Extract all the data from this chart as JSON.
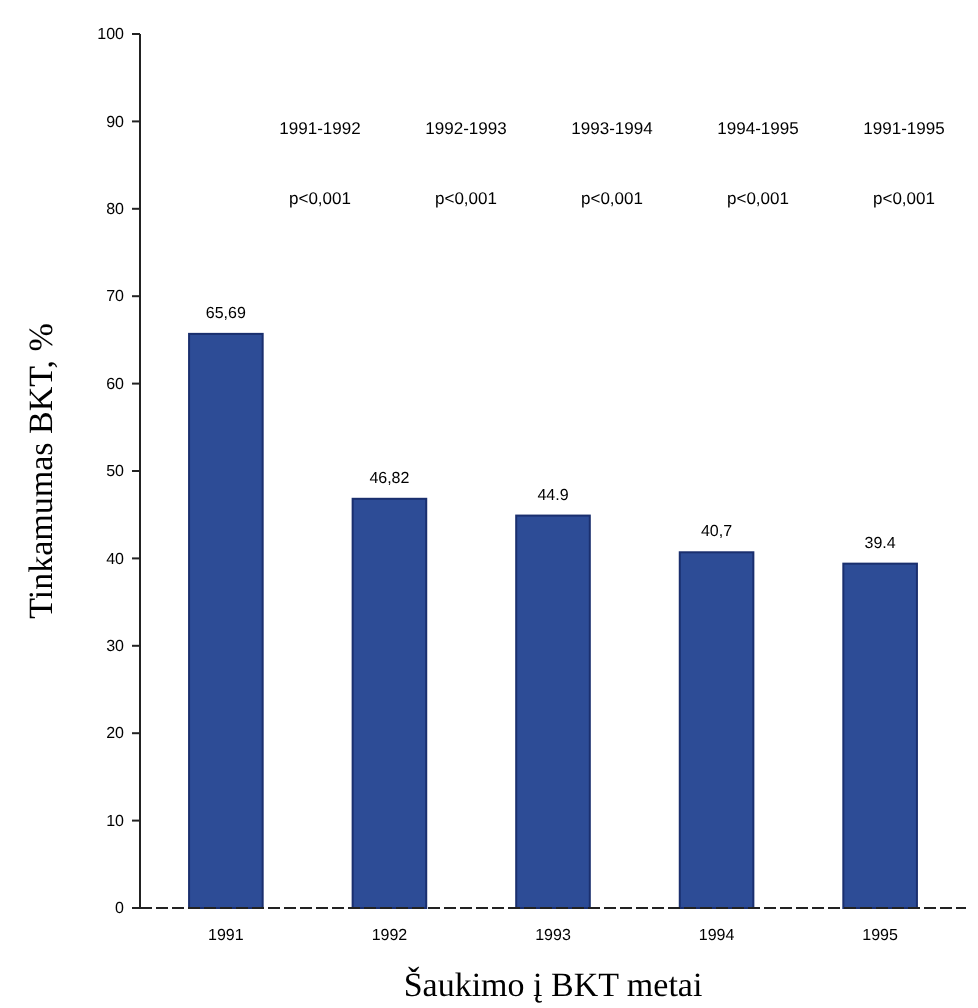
{
  "chart_data": {
    "type": "bar",
    "xlabel": "Šaukimo į BKT metai",
    "ylabel": "Tinkamumas BKT, %",
    "categories": [
      "1991",
      "1992",
      "1993",
      "1994",
      "1995"
    ],
    "values": [
      65.69,
      46.82,
      44.9,
      40.7,
      39.4
    ],
    "value_labels": [
      "65,69",
      "46,82",
      "44.9",
      "40,7",
      "39.4"
    ],
    "color": "#2d4c96",
    "ylim": [
      0,
      100
    ],
    "yticks": [
      0,
      10,
      20,
      30,
      40,
      50,
      60,
      70,
      80,
      90,
      100
    ],
    "grid": false,
    "annotations": [
      "1991-1992",
      "1992-1993",
      "1993-1994",
      "1994-1995",
      "1991-1995",
      "p<0,001",
      "p<0,001",
      "p<0,001",
      "p<0,001",
      "p<0,001"
    ]
  }
}
